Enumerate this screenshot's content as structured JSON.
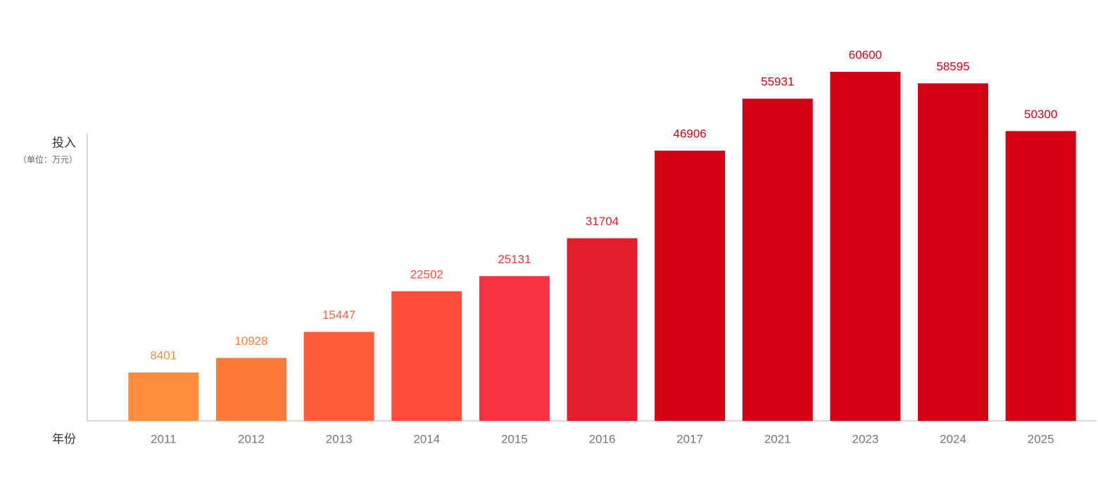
{
  "chart_data": {
    "type": "bar",
    "y_label": "投入",
    "y_unit": "（单位：万元）",
    "x_label": "年份",
    "categories": [
      "2011",
      "2012",
      "2013",
      "2014",
      "2015",
      "2016",
      "2017",
      "2021",
      "2023",
      "2024",
      "2025"
    ],
    "values": [
      8401,
      10928,
      15447,
      22502,
      25131,
      31704,
      46906,
      55931,
      60600,
      58595,
      50300
    ],
    "colors": [
      "#ff8c3a",
      "#ff7a3a",
      "#ff5e3a",
      "#ff4b3a",
      "#f53342",
      "#e31d2d",
      "#d50013",
      "#d50013",
      "#d50013",
      "#d50013",
      "#d50013"
    ]
  }
}
